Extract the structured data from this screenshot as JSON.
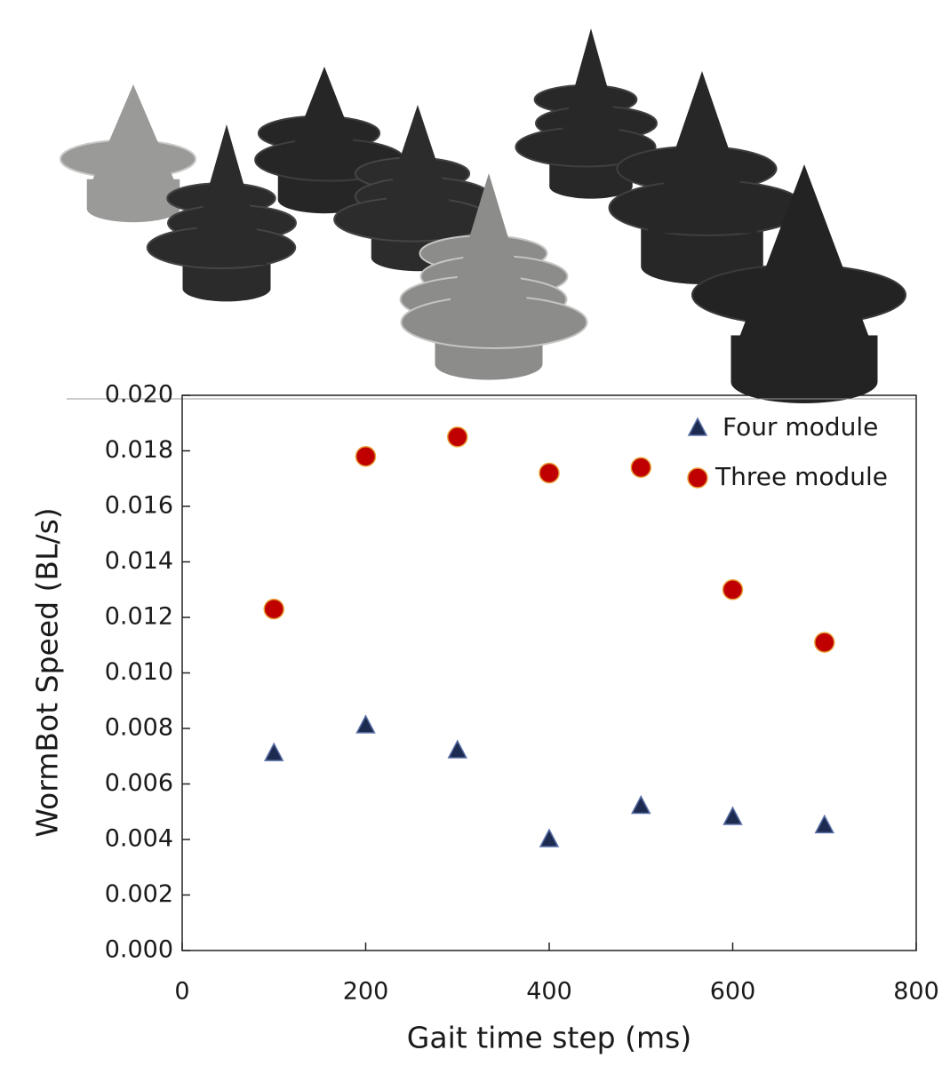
{
  "chart_data": {
    "type": "scatter",
    "x_label": "Gait time step (ms)",
    "y_label": "WormBot Speed (BL/s)",
    "xlim": [
      0,
      800
    ],
    "xticks": [
      0,
      200,
      400,
      600,
      800
    ],
    "ylim": [
      0,
      0.02
    ],
    "yticks": [
      {
        "value": 0,
        "label": "0.000"
      },
      {
        "value": 0.002,
        "label": "0.002"
      },
      {
        "value": 0.004,
        "label": "0.004"
      },
      {
        "value": 0.006,
        "label": "0.006"
      },
      {
        "value": 0.008,
        "label": "0.008"
      },
      {
        "value": 0.01,
        "label": "0.010"
      },
      {
        "value": 0.012,
        "label": "0.012"
      },
      {
        "value": 0.014,
        "label": "0.014"
      },
      {
        "value": 0.016,
        "label": "0.016"
      },
      {
        "value": 0.018,
        "label": "0.018"
      },
      {
        "value": 0.02,
        "label": "0.020"
      }
    ],
    "legend_position": "upper right",
    "series": [
      {
        "name": "Four module",
        "marker": "triangle",
        "color": "#1c2b4f",
        "x": [
          100,
          200,
          300,
          400,
          500,
          600,
          700
        ],
        "values": [
          0.0071,
          0.0081,
          0.0072,
          0.004,
          0.0052,
          0.0048,
          0.0045
        ]
      },
      {
        "name": "Three module",
        "marker": "circle",
        "color": "#c00000",
        "x": [
          100,
          200,
          300,
          400,
          500,
          600,
          700
        ],
        "values": [
          0.0123,
          0.0178,
          0.0185,
          0.0172,
          0.0174,
          0.013,
          0.0111
        ]
      }
    ]
  }
}
